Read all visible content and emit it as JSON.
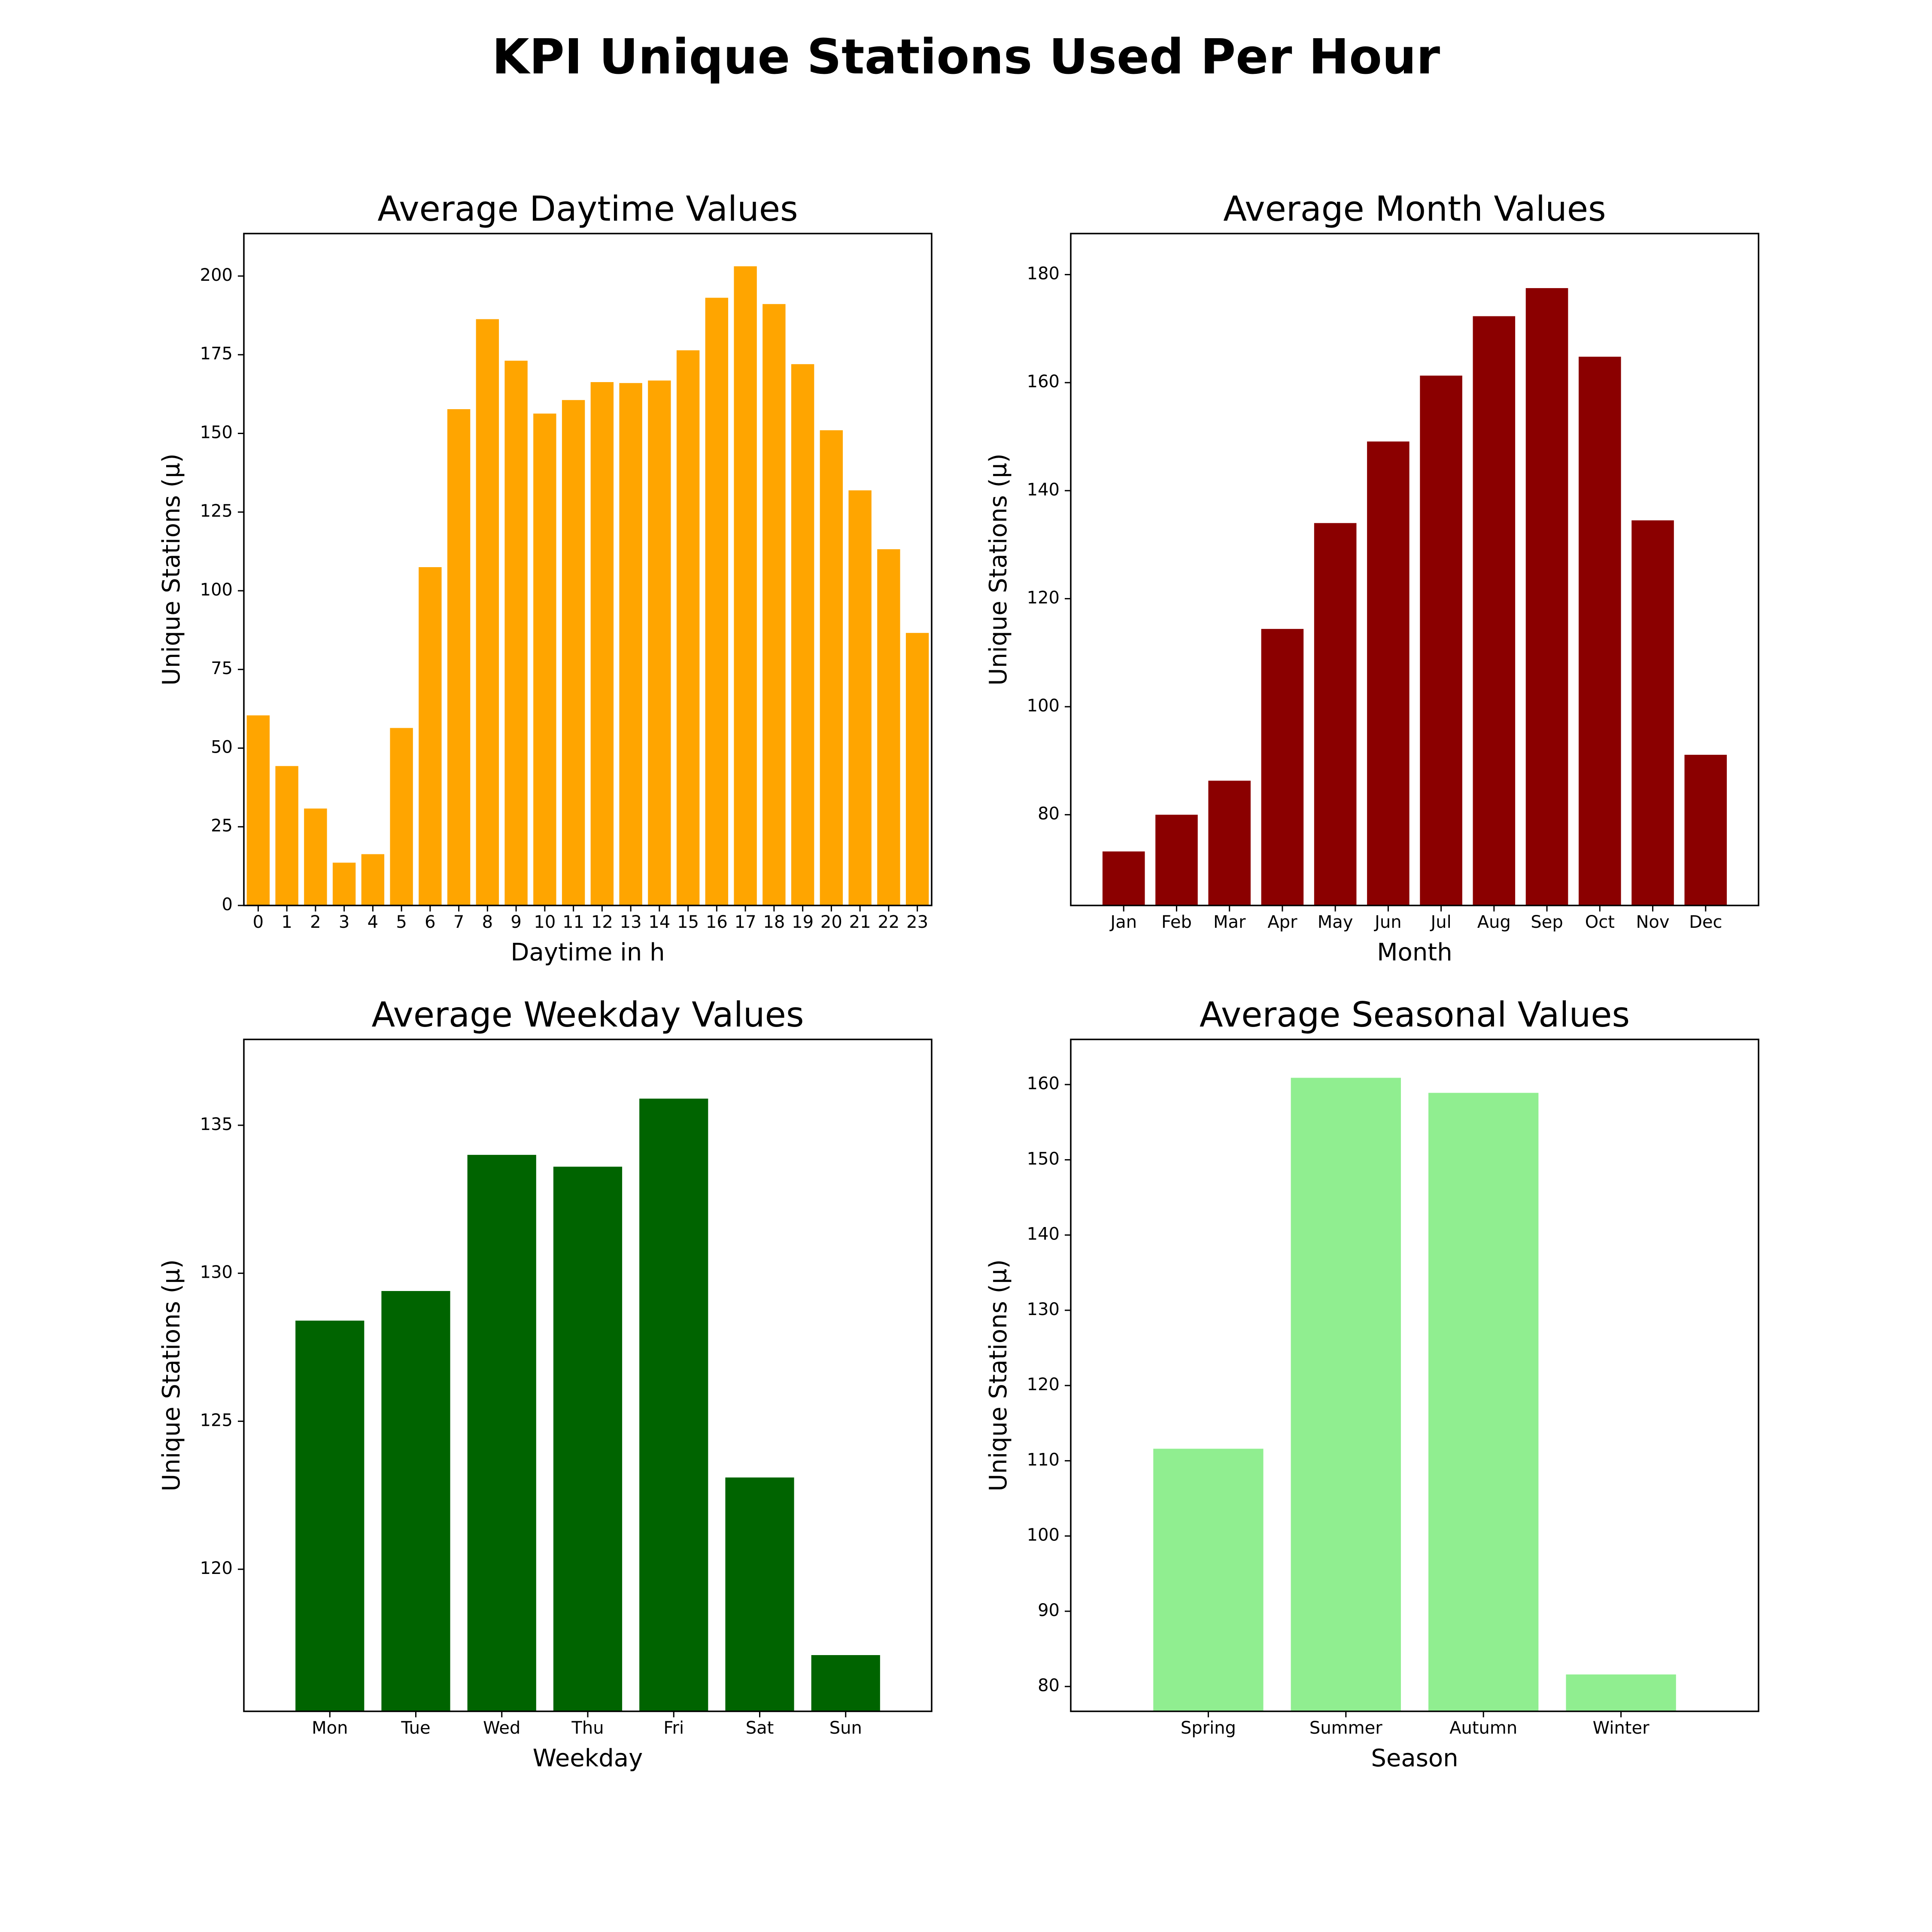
{
  "figure": {
    "title": "KPI Unique Stations Used Per Hour"
  },
  "chart_data": [
    {
      "type": "bar",
      "title": "Average Daytime Values",
      "xlabel": "Daytime in h",
      "ylabel": "Unique Stations (µ)",
      "color": "#ffa500",
      "categories": [
        "0",
        "1",
        "2",
        "3",
        "4",
        "5",
        "6",
        "7",
        "8",
        "9",
        "10",
        "11",
        "12",
        "13",
        "14",
        "15",
        "16",
        "17",
        "18",
        "19",
        "20",
        "21",
        "22",
        "23"
      ],
      "values": [
        60.4,
        44.3,
        30.8,
        13.6,
        16.3,
        56.4,
        107.5,
        157.7,
        186.3,
        173.1,
        156.3,
        160.6,
        166.3,
        166.0,
        166.8,
        176.4,
        193.1,
        203.1,
        191.1,
        172.0,
        151.0,
        131.9,
        113.2,
        86.6
      ],
      "ylim": [
        0,
        213.5
      ],
      "yticks": [
        0,
        25,
        50,
        75,
        100,
        125,
        150,
        175,
        200
      ],
      "xlim": [
        -0.5,
        23.5
      ]
    },
    {
      "type": "bar",
      "title": "Average Month Values",
      "xlabel": "Month",
      "ylabel": "Unique Stations (µ)",
      "color": "#8b0000",
      "categories": [
        "Jan",
        "Feb",
        "Mar",
        "Apr",
        "May",
        "Jun",
        "Jul",
        "Aug",
        "Sep",
        "Oct",
        "Nov",
        "Dec"
      ],
      "values": [
        73.2,
        80.0,
        86.3,
        114.4,
        134.0,
        149.1,
        161.3,
        172.3,
        177.5,
        164.8,
        134.5,
        91.1
      ],
      "ylim": [
        63.2,
        187.6
      ],
      "yticks": [
        80,
        100,
        120,
        140,
        160,
        180
      ],
      "xlim": [
        -1.0,
        12.0
      ]
    },
    {
      "type": "bar",
      "title": "Average Weekday Values",
      "xlabel": "Weekday",
      "ylabel": "Unique Stations (µ)",
      "color": "#006400",
      "categories": [
        "Mon",
        "Tue",
        "Wed",
        "Thu",
        "Fri",
        "Sat",
        "Sun"
      ],
      "values": [
        128.4,
        129.4,
        134.0,
        133.6,
        135.9,
        123.1,
        117.1
      ],
      "ylim": [
        115.2,
        137.9
      ],
      "yticks": [
        120,
        125,
        130,
        135
      ],
      "xlim": [
        -1.0,
        7.0
      ]
    },
    {
      "type": "bar",
      "title": "Average Seasonal Values",
      "xlabel": "Season",
      "ylabel": "Unique Stations (µ)",
      "color": "#90ee90",
      "categories": [
        "Spring",
        "Summer",
        "Autumn",
        "Winter"
      ],
      "values": [
        111.6,
        160.9,
        158.9,
        81.6
      ],
      "ylim": [
        76.7,
        166.0
      ],
      "yticks": [
        80,
        90,
        100,
        110,
        120,
        130,
        140,
        150,
        160
      ],
      "xlim": [
        -1.0,
        4.0
      ]
    }
  ]
}
